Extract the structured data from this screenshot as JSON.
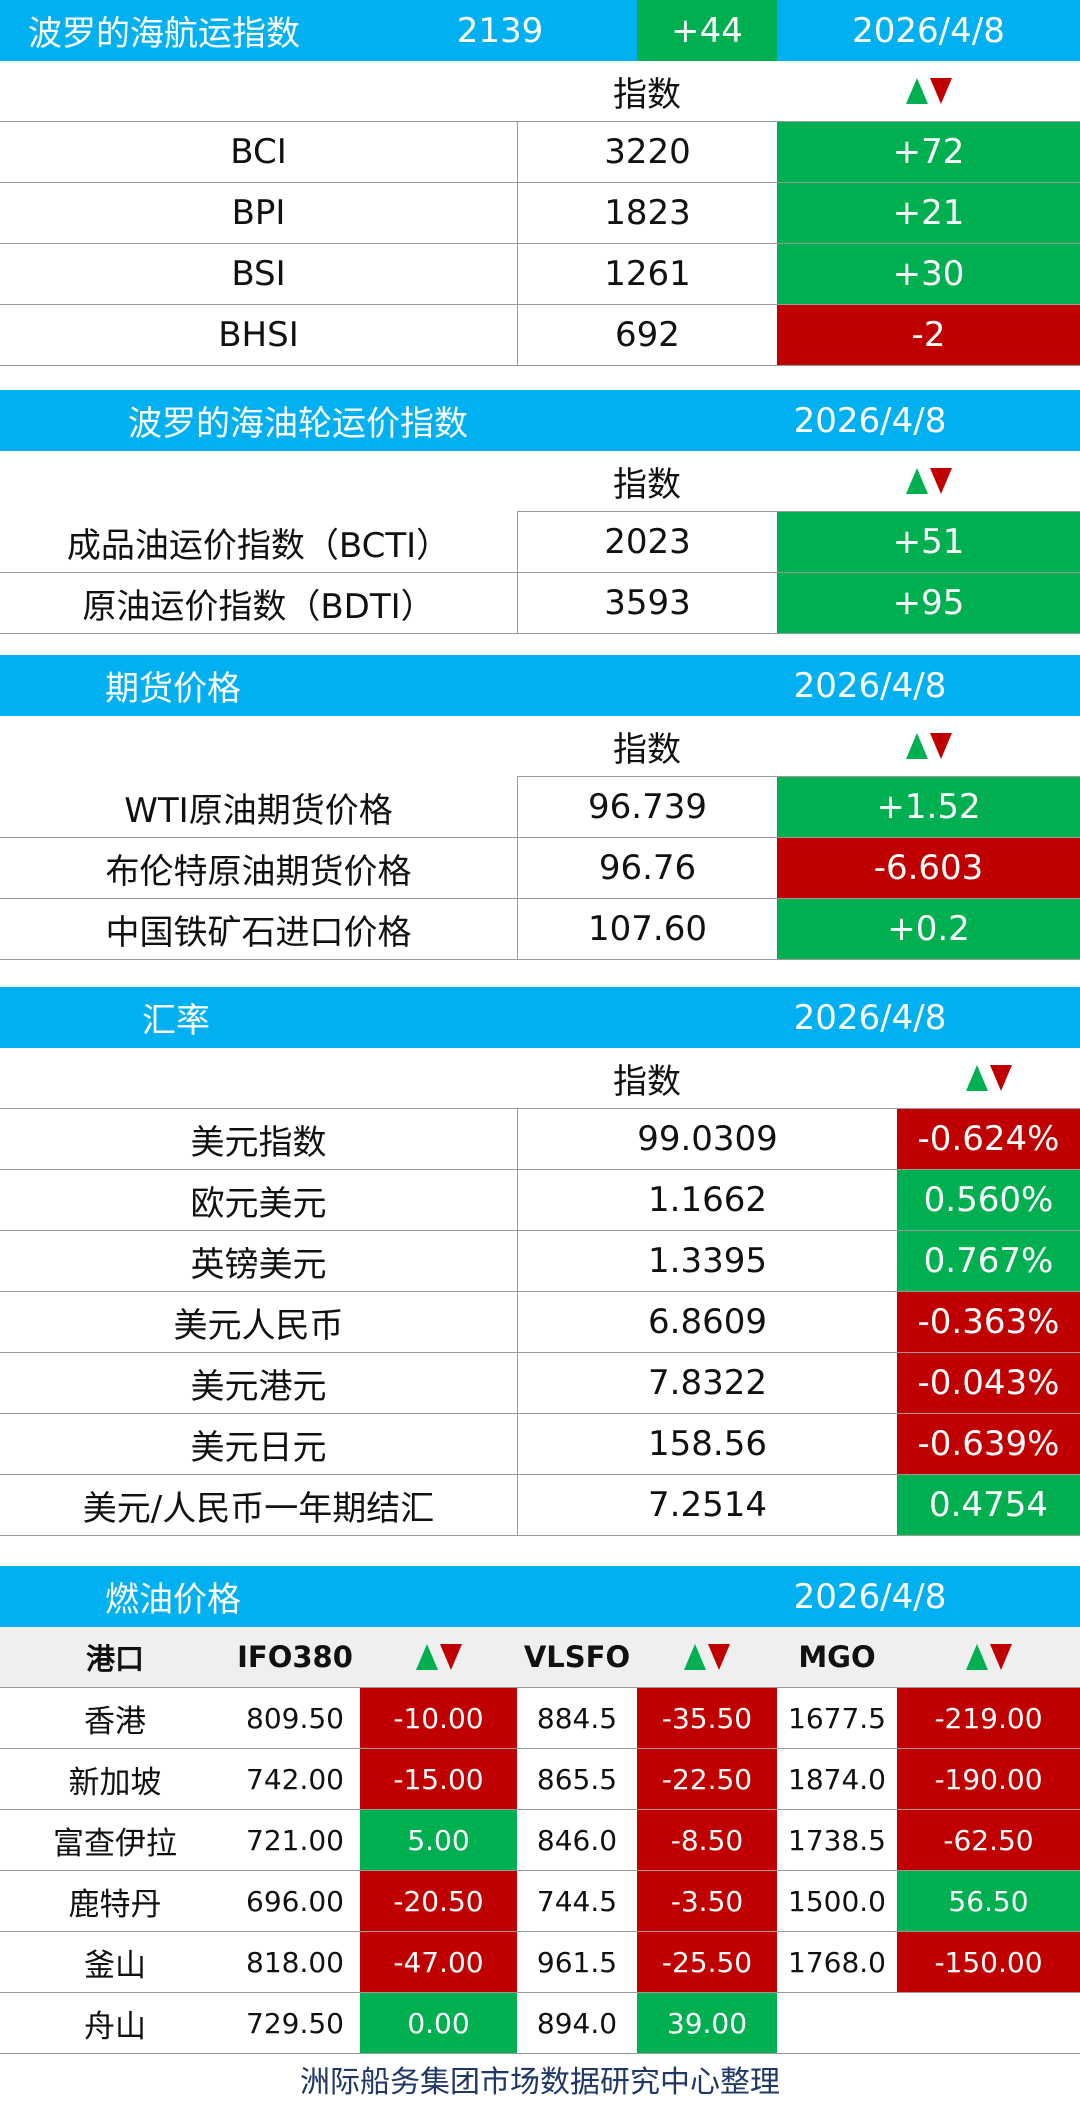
{
  "baltic": {
    "title": "波罗的海航运指数",
    "value": "2139",
    "change": "+44",
    "date": "2026/4/8",
    "col_index": "指数",
    "rows": [
      {
        "name": "BCI",
        "value": "3220",
        "change": "+72",
        "dir": "up"
      },
      {
        "name": "BPI",
        "value": "1823",
        "change": "+21",
        "dir": "up"
      },
      {
        "name": "BSI",
        "value": "1261",
        "change": "+30",
        "dir": "up"
      },
      {
        "name": "BHSI",
        "value": "692",
        "change": "-2",
        "dir": "down"
      }
    ]
  },
  "tanker": {
    "title": "波罗的海油轮运价指数",
    "date": "2026/4/8",
    "col_index": "指数",
    "rows": [
      {
        "name": "成品油运价指数（BCTI）",
        "value": "2023",
        "change": "+51",
        "dir": "up"
      },
      {
        "name": "原油运价指数（BDTI）",
        "value": "3593",
        "change": "+95",
        "dir": "up"
      }
    ]
  },
  "futures": {
    "title": "期货价格",
    "date": "2026/4/8",
    "col_index": "指数",
    "rows": [
      {
        "name": "WTI原油期货价格",
        "value": "96.739",
        "change": "+1.52",
        "dir": "up"
      },
      {
        "name": "布伦特原油期货价格",
        "value": "96.76",
        "change": "-6.603",
        "dir": "down"
      },
      {
        "name": "中国铁矿石进口价格",
        "value": "107.60",
        "change": "+0.2",
        "dir": "up"
      }
    ]
  },
  "fx": {
    "title": "汇率",
    "date": "2026/4/8",
    "col_index": "指数",
    "rows": [
      {
        "name": "美元指数",
        "value": "99.0309",
        "change": "-0.624%",
        "dir": "down"
      },
      {
        "name": "欧元美元",
        "value": "1.1662",
        "change": "0.560%",
        "dir": "up"
      },
      {
        "name": "英镑美元",
        "value": "1.3395",
        "change": "0.767%",
        "dir": "up"
      },
      {
        "name": "美元人民币",
        "value": "6.8609",
        "change": "-0.363%",
        "dir": "down"
      },
      {
        "name": "美元港元",
        "value": "7.8322",
        "change": "-0.043%",
        "dir": "down"
      },
      {
        "name": "美元日元",
        "value": "158.56",
        "change": "-0.639%",
        "dir": "down"
      },
      {
        "name": "美元/人民币一年期结汇",
        "value": "7.2514",
        "change": "0.4754",
        "dir": "up"
      }
    ]
  },
  "fuel": {
    "title": "燃油价格",
    "date": "2026/4/8",
    "headers": {
      "port": "港口",
      "ifo": "IFO380",
      "vlsfo": "VLSFO",
      "mgo": "MGO"
    },
    "rows": [
      {
        "port": "香港",
        "ifo": "809.50",
        "ifo_chg": "-10.00",
        "ifo_dir": "down",
        "vlsfo": "884.5",
        "vlsfo_chg": "-35.50",
        "vlsfo_dir": "down",
        "mgo": "1677.5",
        "mgo_chg": "-219.00",
        "mgo_dir": "down"
      },
      {
        "port": "新加坡",
        "ifo": "742.00",
        "ifo_chg": "-15.00",
        "ifo_dir": "down",
        "vlsfo": "865.5",
        "vlsfo_chg": "-22.50",
        "vlsfo_dir": "down",
        "mgo": "1874.0",
        "mgo_chg": "-190.00",
        "mgo_dir": "down"
      },
      {
        "port": "富查伊拉",
        "ifo": "721.00",
        "ifo_chg": "5.00",
        "ifo_dir": "up",
        "vlsfo": "846.0",
        "vlsfo_chg": "-8.50",
        "vlsfo_dir": "down",
        "mgo": "1738.5",
        "mgo_chg": "-62.50",
        "mgo_dir": "down"
      },
      {
        "port": "鹿特丹",
        "ifo": "696.00",
        "ifo_chg": "-20.50",
        "ifo_dir": "down",
        "vlsfo": "744.5",
        "vlsfo_chg": "-3.50",
        "vlsfo_dir": "down",
        "mgo": "1500.0",
        "mgo_chg": "56.50",
        "mgo_dir": "up"
      },
      {
        "port": "釜山",
        "ifo": "818.00",
        "ifo_chg": "-47.00",
        "ifo_dir": "down",
        "vlsfo": "961.5",
        "vlsfo_chg": "-25.50",
        "vlsfo_dir": "down",
        "mgo": "1768.0",
        "mgo_chg": "-150.00",
        "mgo_dir": "down"
      },
      {
        "port": "舟山",
        "ifo": "729.50",
        "ifo_chg": "0.00",
        "ifo_dir": "up",
        "vlsfo": "894.0",
        "vlsfo_chg": "39.00",
        "vlsfo_dir": "up",
        "mgo": "",
        "mgo_chg": "",
        "mgo_dir": "none"
      }
    ]
  },
  "footer": "洲际船务集团市场数据研究中心整理",
  "colors": {
    "header": "#00b0f0",
    "up": "#00b050",
    "down": "#c00000"
  }
}
